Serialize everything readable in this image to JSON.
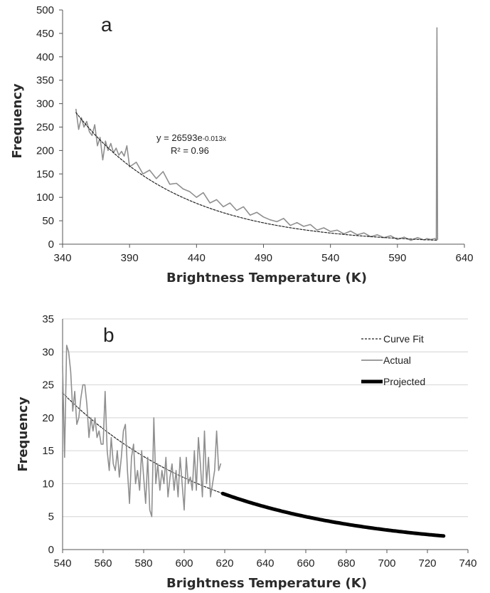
{
  "chart_data": [
    {
      "panel": "a",
      "type": "line",
      "xlabel": "Brightness Temperature (K)",
      "ylabel": "Frequency",
      "xlim": [
        340,
        640
      ],
      "ylim": [
        0,
        500
      ],
      "xticks": [
        340,
        390,
        440,
        490,
        540,
        590,
        640
      ],
      "yticks": [
        0,
        50,
        100,
        150,
        200,
        250,
        300,
        350,
        400,
        450,
        500
      ],
      "grid": false,
      "annotation": {
        "equation_base": "y = 26593e",
        "equation_exp": "-0.013x",
        "r2_label": "R² = 0.96"
      },
      "series": [
        {
          "role": "actual",
          "color": "#8f8f8f",
          "x": [
            350,
            352,
            354,
            356,
            358,
            360,
            362,
            364,
            366,
            368,
            370,
            372,
            374,
            376,
            378,
            380,
            382,
            384,
            386,
            388,
            390,
            395,
            400,
            405,
            410,
            415,
            420,
            425,
            430,
            435,
            440,
            445,
            450,
            455,
            460,
            465,
            470,
            475,
            480,
            485,
            490,
            495,
            500,
            505,
            510,
            515,
            520,
            525,
            530,
            535,
            540,
            545,
            550,
            555,
            560,
            565,
            570,
            575,
            580,
            585,
            590,
            595,
            600,
            605,
            610,
            612,
            615,
            618,
            619,
            619.5,
            620
          ],
          "y": [
            288,
            245,
            270,
            250,
            262,
            240,
            232,
            255,
            210,
            228,
            180,
            220,
            200,
            215,
            195,
            205,
            190,
            198,
            188,
            210,
            165,
            175,
            150,
            158,
            140,
            155,
            128,
            130,
            118,
            112,
            100,
            110,
            88,
            95,
            80,
            88,
            72,
            80,
            62,
            68,
            58,
            52,
            48,
            55,
            40,
            46,
            38,
            42,
            30,
            35,
            27,
            30,
            22,
            28,
            20,
            24,
            16,
            20,
            14,
            18,
            10,
            15,
            8,
            14,
            9,
            12,
            10,
            12,
            10,
            462,
            10
          ]
        },
        {
          "role": "curve fit",
          "color": "#222222",
          "dashed": true,
          "function": "exponential",
          "coefficient": 26593,
          "rate": -0.013,
          "x_range": [
            350,
            620
          ]
        }
      ]
    },
    {
      "panel": "b",
      "type": "line",
      "xlabel": "Brightness Temperature (K)",
      "ylabel": "Frequency",
      "xlim": [
        540,
        740
      ],
      "ylim": [
        0,
        35
      ],
      "xticks": [
        540,
        560,
        580,
        600,
        620,
        640,
        660,
        680,
        700,
        720,
        740
      ],
      "yticks": [
        0,
        5,
        10,
        15,
        20,
        25,
        30,
        35
      ],
      "grid": true,
      "legend_position": "top-right",
      "series": [
        {
          "name": "Curve Fit",
          "color": "#222222",
          "dashed": true,
          "function": "exponential",
          "coefficient": 26593,
          "rate": -0.013,
          "x_range": [
            540,
            618
          ]
        },
        {
          "name": "Actual",
          "color": "#8f8f8f",
          "x": [
            540,
            541,
            542,
            543,
            544,
            545,
            546,
            547,
            548,
            549,
            550,
            551,
            552,
            553,
            554,
            555,
            556,
            557,
            558,
            559,
            560,
            561,
            562,
            563,
            564,
            565,
            566,
            567,
            568,
            569,
            570,
            571,
            572,
            573,
            574,
            575,
            576,
            577,
            578,
            579,
            580,
            581,
            582,
            583,
            584,
            585,
            586,
            587,
            588,
            589,
            590,
            591,
            592,
            593,
            594,
            595,
            596,
            597,
            598,
            599,
            600,
            601,
            602,
            603,
            604,
            605,
            606,
            607,
            608,
            609,
            610,
            611,
            612,
            613,
            614,
            615,
            616,
            617,
            618
          ],
          "y": [
            28,
            14,
            31,
            30,
            27,
            21,
            24,
            19,
            20,
            23,
            25,
            25,
            22,
            17,
            20,
            18,
            20,
            17,
            18,
            16,
            16,
            24,
            15,
            12,
            17,
            13,
            12,
            15,
            11,
            14,
            18,
            19,
            12,
            7,
            14,
            16,
            10,
            12,
            9,
            15,
            11,
            7,
            14,
            6,
            5,
            20,
            10,
            13,
            9,
            12,
            10,
            14,
            8,
            11,
            13,
            9,
            12,
            8,
            14,
            10,
            6,
            14,
            10,
            11,
            9,
            15,
            9,
            17,
            13,
            8,
            18,
            10,
            14,
            8,
            10,
            12,
            18,
            12,
            13
          ]
        },
        {
          "name": "Projected",
          "color": "#000000",
          "function": "exponential",
          "coefficient": 26593,
          "rate": -0.013,
          "x_range": [
            619,
            728
          ]
        }
      ]
    }
  ]
}
